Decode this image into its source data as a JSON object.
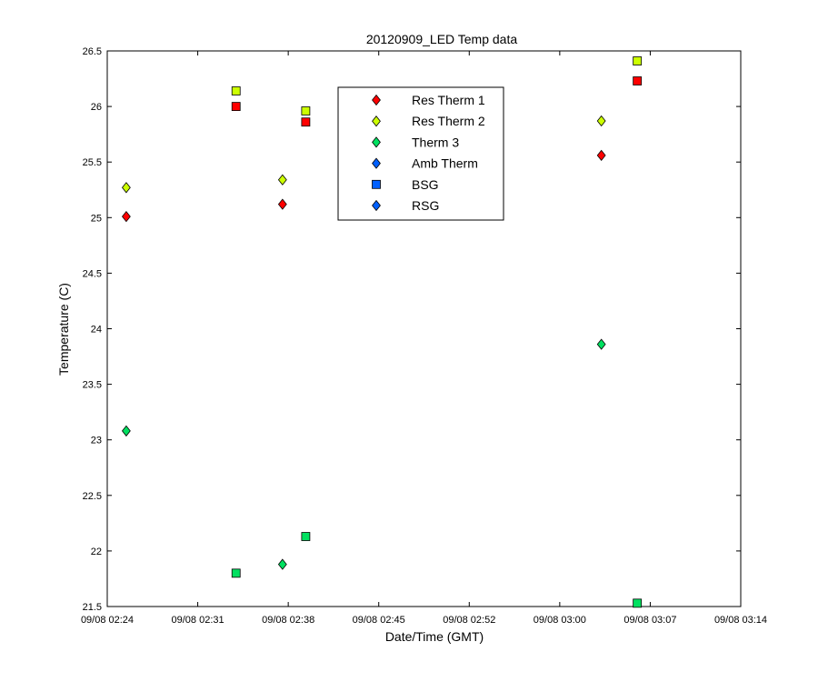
{
  "chart_data": {
    "type": "scatter",
    "title": "20120909_LED Temp data",
    "xlabel": "Date/Time (GMT)",
    "ylabel": "Temperature (C)",
    "xlim": [
      "09/08 02:24",
      "09/08 03:14"
    ],
    "ylim": [
      21.5,
      26.5
    ],
    "x_ticks": [
      "09/08 02:24",
      "09/08 02:31",
      "09/08 02:38",
      "09/08 02:45",
      "09/08 02:52",
      "09/08 03:00",
      "09/08 03:07",
      "09/08 03:14"
    ],
    "y_ticks": [
      "21.5",
      "22",
      "22.5",
      "23",
      "23.5",
      "24",
      "24.5",
      "25",
      "25.5",
      "26",
      "26.5"
    ],
    "grid": false,
    "legend_position": "top-center",
    "series": [
      {
        "name": "Res Therm 1",
        "marker": "diamond",
        "color": "#ff0000",
        "points": [
          {
            "x": "09/08 02:25:30",
            "y": 25.01
          },
          {
            "x": "09/08 02:37:50",
            "y": 25.12
          },
          {
            "x": "09/08 03:03:00",
            "y": 25.56
          }
        ]
      },
      {
        "name": "Res Therm 2",
        "marker": "diamond",
        "color": "#ccff00",
        "points": [
          {
            "x": "09/08 02:25:30",
            "y": 25.27
          },
          {
            "x": "09/08 02:37:50",
            "y": 25.34
          },
          {
            "x": "09/08 03:03:00",
            "y": 25.87
          }
        ]
      },
      {
        "name": "Therm 3",
        "marker": "diamond",
        "color": "#00e060",
        "points": [
          {
            "x": "09/08 02:25:30",
            "y": 23.08
          },
          {
            "x": "09/08 02:37:50",
            "y": 21.88
          },
          {
            "x": "09/08 03:03:00",
            "y": 23.86
          }
        ]
      },
      {
        "name": "Amb Therm",
        "marker": "diamond",
        "color": "#0060ff",
        "points": []
      },
      {
        "name": "BSG",
        "marker": "square",
        "color": "#0060ff",
        "points": []
      },
      {
        "name": "RSG",
        "marker": "diamond",
        "color": "#0060ff",
        "points": []
      }
    ],
    "unlisted_markers": [
      {
        "marker": "square",
        "color": "#ff0000",
        "points": [
          {
            "x": "09/08 02:34:10",
            "y": 26.0
          },
          {
            "x": "09/08 02:39:40",
            "y": 25.86
          },
          {
            "x": "09/08 03:05:50",
            "y": 26.23
          }
        ]
      },
      {
        "marker": "square",
        "color": "#ccff00",
        "points": [
          {
            "x": "09/08 02:34:10",
            "y": 26.14
          },
          {
            "x": "09/08 02:39:40",
            "y": 25.96
          },
          {
            "x": "09/08 03:05:50",
            "y": 26.41
          }
        ]
      },
      {
        "marker": "square",
        "color": "#00e060",
        "points": [
          {
            "x": "09/08 02:34:10",
            "y": 21.8
          },
          {
            "x": "09/08 02:39:40",
            "y": 22.13
          },
          {
            "x": "09/08 03:05:50",
            "y": 21.53
          }
        ]
      }
    ]
  }
}
